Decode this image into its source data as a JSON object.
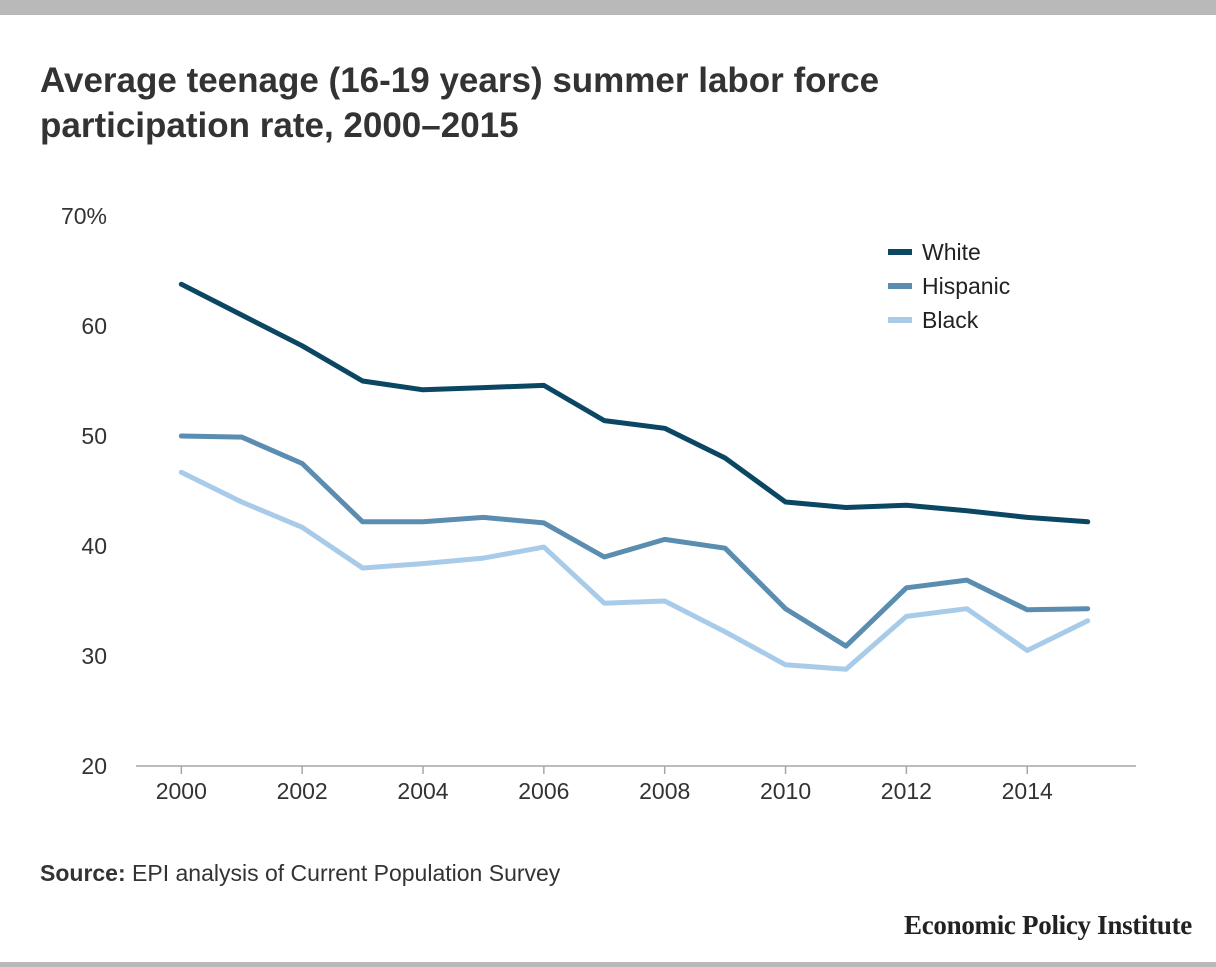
{
  "header": {
    "title_line1": "Average teenage (16-19 years) summer labor force",
    "title_line2": "participation rate, 2000–2015"
  },
  "footer": {
    "source_label": "Source:",
    "source_text": " EPI analysis of Current Population Survey",
    "brand": "Economic Policy Institute"
  },
  "chart_data": {
    "type": "line",
    "x": [
      2000,
      2001,
      2002,
      2003,
      2004,
      2005,
      2006,
      2007,
      2008,
      2009,
      2010,
      2011,
      2012,
      2013,
      2014,
      2015
    ],
    "x_tick_labels": [
      "2000",
      "2002",
      "2004",
      "2006",
      "2008",
      "2010",
      "2012",
      "2014"
    ],
    "x_tick_values": [
      2000,
      2002,
      2004,
      2006,
      2008,
      2010,
      2012,
      2014
    ],
    "y_tick_labels": [
      "70%",
      "60",
      "50",
      "40",
      "30",
      "20"
    ],
    "y_tick_values": [
      70,
      60,
      50,
      40,
      30,
      20
    ],
    "ylim": [
      20,
      70
    ],
    "xlim": [
      1999.25,
      2015.8
    ],
    "grid": false,
    "legend_position": "top-right",
    "series": [
      {
        "name": "White",
        "color": "#0b4763",
        "values": [
          63.8,
          61.0,
          58.2,
          55.0,
          54.2,
          54.4,
          54.6,
          51.4,
          50.7,
          48.0,
          44.0,
          43.5,
          43.7,
          43.2,
          42.6,
          42.2
        ]
      },
      {
        "name": "Hispanic",
        "color": "#5b8db0",
        "values": [
          50.0,
          49.9,
          47.5,
          42.2,
          42.2,
          42.6,
          42.1,
          39.0,
          40.6,
          39.8,
          34.3,
          30.9,
          36.2,
          36.9,
          34.2,
          34.3
        ]
      },
      {
        "name": "Black",
        "color": "#a8cbe9",
        "values": [
          46.7,
          44.0,
          41.7,
          38.0,
          38.4,
          38.9,
          39.9,
          34.8,
          35.0,
          32.2,
          29.2,
          28.8,
          33.6,
          34.3,
          30.5,
          33.2
        ]
      }
    ]
  }
}
